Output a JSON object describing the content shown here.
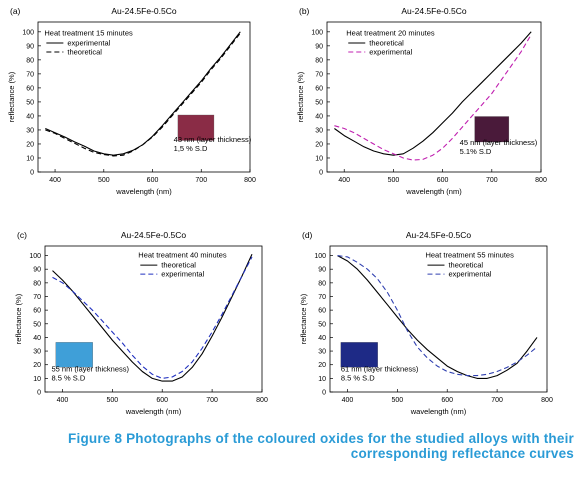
{
  "colors": {
    "caption": "#2a9bd6",
    "theoretical_b_c": "#000000",
    "experimental_b": "#c020b0",
    "experimental_c": "#2030c0",
    "experimental_d": "#3040b0"
  },
  "caption": "Figure 8 Photographs of the coloured oxides for the studied alloys with their corresponding reflectance curves",
  "chart_data": [
    {
      "type": "line",
      "panel_label": "(a)",
      "title": "Au-24.5Fe-0.5Co",
      "xlabel": "wavelength (nm)",
      "ylabel": "reflectance (%)",
      "xlim": [
        365,
        800
      ],
      "ylim": [
        0,
        107
      ],
      "xticks": [
        400,
        500,
        600,
        700,
        800
      ],
      "yticks": [
        0,
        10,
        20,
        30,
        40,
        50,
        60,
        70,
        80,
        90,
        100
      ],
      "legend_title": "Heat treatment 15 minutes",
      "legend_position": "top-left",
      "series": [
        {
          "name": "experimental",
          "color": "#000000",
          "dash": "solid",
          "x": [
            380,
            400,
            420,
            440,
            460,
            480,
            500,
            520,
            540,
            560,
            580,
            600,
            620,
            640,
            660,
            680,
            700,
            720,
            740,
            760,
            780
          ],
          "y": [
            31,
            28,
            25,
            21.5,
            18.5,
            15,
            13,
            12,
            13,
            15.5,
            19.5,
            25.5,
            33,
            41,
            49,
            57,
            65,
            74,
            82,
            91,
            100
          ]
        },
        {
          "name": "theoretical",
          "color": "#000000",
          "dash": "dashed",
          "x": [
            380,
            400,
            420,
            440,
            460,
            480,
            500,
            520,
            540,
            560,
            580,
            600,
            620,
            640,
            660,
            680,
            700,
            720,
            740,
            760,
            780
          ],
          "y": [
            30,
            27.5,
            24,
            20.5,
            17,
            14,
            12.5,
            11.5,
            12,
            15,
            19.5,
            25,
            32,
            40,
            48,
            56,
            64,
            73,
            81,
            90,
            99
          ]
        }
      ],
      "annotations": [
        "43 nm (layer thickness)",
        "1,5 % S.D"
      ],
      "photo_color": "#8a2c46"
    },
    {
      "type": "line",
      "panel_label": "(b)",
      "title": "Au-24.5Fe-0.5Co",
      "xlabel": "wavelength (nm)",
      "ylabel": "reflectance (%)",
      "xlim": [
        365,
        800
      ],
      "ylim": [
        0,
        107
      ],
      "xticks": [
        400,
        500,
        600,
        700,
        800
      ],
      "yticks": [
        0,
        10,
        20,
        30,
        40,
        50,
        60,
        70,
        80,
        90,
        100
      ],
      "legend_title": "Heat treatment 20 minutes",
      "legend_position": "top-left",
      "series": [
        {
          "name": "theoretical",
          "color": "#000000",
          "dash": "solid",
          "x": [
            380,
            400,
            420,
            440,
            460,
            480,
            500,
            520,
            540,
            560,
            580,
            600,
            620,
            640,
            660,
            680,
            700,
            720,
            740,
            760,
            780
          ],
          "y": [
            31,
            26,
            22,
            18,
            15,
            13,
            12,
            13,
            17,
            22,
            28,
            35,
            42,
            50,
            57,
            64,
            71,
            78,
            85,
            92,
            100
          ]
        },
        {
          "name": "experimental",
          "color": "#c020b0",
          "dash": "dashed",
          "x": [
            380,
            400,
            420,
            440,
            460,
            480,
            500,
            520,
            540,
            560,
            580,
            600,
            620,
            640,
            660,
            680,
            700,
            720,
            740,
            760,
            780
          ],
          "y": [
            33,
            31,
            28,
            24,
            20,
            16,
            13,
            10,
            8.5,
            9,
            12,
            17,
            24,
            32,
            40,
            48,
            56,
            66,
            76,
            86,
            98
          ]
        }
      ],
      "annotations": [
        "45 nm (layer thickness)",
        "5.1% S.D"
      ],
      "photo_color": "#4a1a3a"
    },
    {
      "type": "line",
      "panel_label": "(c)",
      "title": "Au-24.5Fe-0.5Co",
      "xlabel": "wavelength (nm)",
      "ylabel": "reflectance (%)",
      "xlim": [
        365,
        800
      ],
      "ylim": [
        0,
        107
      ],
      "xticks": [
        400,
        500,
        600,
        700,
        800
      ],
      "yticks": [
        0,
        10,
        20,
        30,
        40,
        50,
        60,
        70,
        80,
        90,
        100
      ],
      "legend_title": "Heat treatment 40 minutes",
      "legend_position": "top-right",
      "series": [
        {
          "name": "theoretical",
          "color": "#000000",
          "dash": "solid",
          "x": [
            380,
            400,
            420,
            440,
            460,
            480,
            500,
            520,
            540,
            560,
            580,
            600,
            620,
            640,
            660,
            680,
            700,
            720,
            740,
            760,
            780
          ],
          "y": [
            89,
            82,
            74,
            65,
            56,
            47,
            38,
            30,
            22,
            15,
            10,
            8,
            8,
            11,
            18,
            28,
            41,
            55,
            70,
            85,
            101
          ]
        },
        {
          "name": "experimental",
          "color": "#2030c0",
          "dash": "dashed",
          "x": [
            380,
            400,
            420,
            440,
            460,
            480,
            500,
            520,
            540,
            560,
            580,
            600,
            620,
            640,
            660,
            680,
            700,
            720,
            740,
            760,
            780
          ],
          "y": [
            84,
            80,
            74,
            67,
            60,
            52,
            44,
            36,
            27,
            19,
            13,
            10,
            11,
            15,
            22,
            32,
            44,
            57,
            71,
            85,
            99
          ]
        }
      ],
      "annotations": [
        "55 nm (layer thickness)",
        "8.5 % S.D"
      ],
      "photo_color": "#3f9fd8"
    },
    {
      "type": "line",
      "panel_label": "(d)",
      "title": "Au-24.5Fe-0.5Co",
      "xlabel": "wavelength (nm)",
      "ylabel": "reflectance (%)",
      "xlim": [
        365,
        800
      ],
      "ylim": [
        0,
        107
      ],
      "xticks": [
        400,
        500,
        600,
        700,
        800
      ],
      "yticks": [
        0,
        10,
        20,
        30,
        40,
        50,
        60,
        70,
        80,
        90,
        100
      ],
      "legend_title": "Heat treatment 55 minutes",
      "legend_position": "top-right",
      "series": [
        {
          "name": "theoretical",
          "color": "#000000",
          "dash": "solid",
          "x": [
            380,
            400,
            420,
            440,
            460,
            480,
            500,
            520,
            540,
            560,
            580,
            600,
            620,
            640,
            660,
            680,
            700,
            720,
            740,
            760,
            780
          ],
          "y": [
            100,
            96,
            90,
            82,
            73,
            64,
            55,
            46,
            38,
            31,
            25,
            19,
            15,
            12,
            10,
            10,
            12,
            16,
            21,
            30,
            40
          ]
        },
        {
          "name": "experimental",
          "color": "#3040b0",
          "dash": "dashed",
          "x": [
            380,
            400,
            420,
            440,
            460,
            480,
            500,
            520,
            540,
            560,
            580,
            600,
            620,
            640,
            660,
            680,
            700,
            720,
            740,
            760,
            780
          ],
          "y": [
            100,
            99,
            95,
            90,
            83,
            73,
            60,
            45,
            33,
            25,
            19,
            15,
            13,
            12,
            12,
            13,
            15,
            18,
            22,
            27,
            33
          ]
        }
      ],
      "annotations": [
        "61 nm (layer thickness)",
        "8.5 % S.D"
      ],
      "photo_color": "#1e2a86"
    }
  ]
}
